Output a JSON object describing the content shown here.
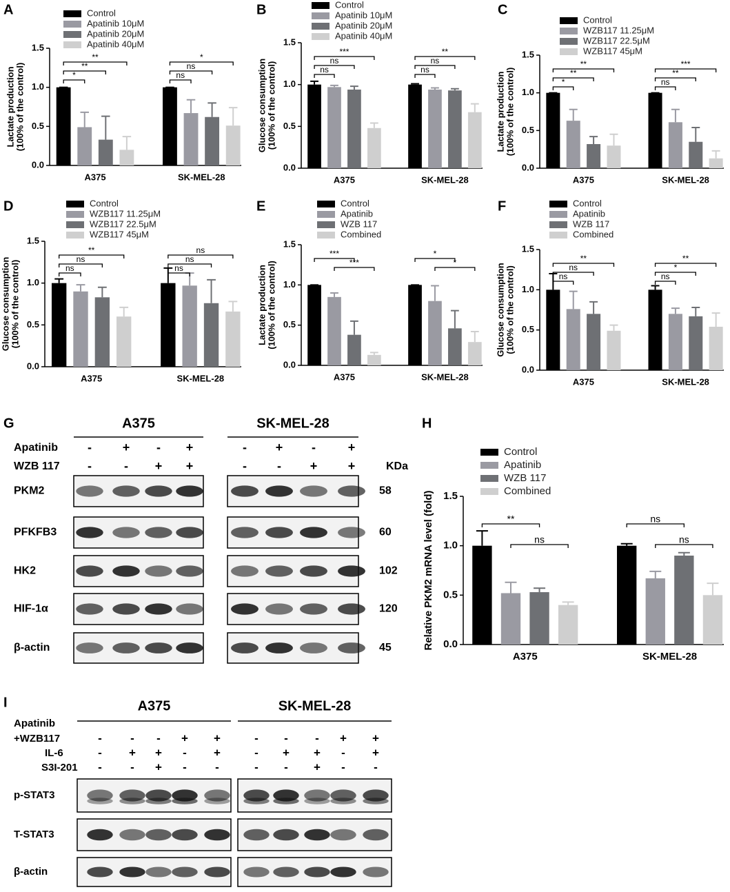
{
  "chart_data": [
    {
      "type": "bar",
      "panel": "A",
      "ylabel": [
        "Lactate production",
        "(100% of the control)"
      ],
      "categories": [
        "A375",
        "SK-MEL-28"
      ],
      "series": [
        {
          "name": "Control",
          "color": "#000000",
          "values": [
            1,
            1
          ],
          "errors": [
            0,
            0
          ]
        },
        {
          "name": "Apatinib 10μM",
          "color": "#9a9aa2",
          "values": [
            0.49,
            0.67
          ],
          "errors": [
            0.19,
            0.17
          ]
        },
        {
          "name": "Apatinib 20μM",
          "color": "#6e7074",
          "values": [
            0.33,
            0.62
          ],
          "errors": [
            0.3,
            0.18
          ]
        },
        {
          "name": "Apatinib 40μM",
          "color": "#cfcfcf",
          "values": [
            0.2,
            0.51
          ],
          "errors": [
            0.17,
            0.23
          ]
        }
      ],
      "ylim": [
        0,
        1.5
      ],
      "yticks": [
        {
          "value": 0,
          "label": "0.0"
        },
        {
          "value": 0.5,
          "label": "0.5"
        },
        {
          "value": 1,
          "label": "1.0"
        },
        {
          "value": 1.5,
          "label": "1.5"
        }
      ],
      "annotations": [
        {
          "text": "*",
          "category": 0,
          "from": 0,
          "to": 1
        },
        {
          "text": "**",
          "category": 0,
          "from": 0,
          "to": 2
        },
        {
          "text": "**",
          "category": 0,
          "from": 0,
          "to": 3
        },
        {
          "text": "ns",
          "category": 1,
          "from": 0,
          "to": 1
        },
        {
          "text": "ns",
          "category": 1,
          "from": 0,
          "to": 2
        },
        {
          "text": "*",
          "category": 1,
          "from": 0,
          "to": 3
        }
      ]
    },
    {
      "type": "bar",
      "panel": "B",
      "ylabel": [
        "Glucose consumption",
        "(100% of the control)"
      ],
      "categories": [
        "A375",
        "SK-MEL-28"
      ],
      "series": [
        {
          "name": "Control",
          "color": "#000000",
          "values": [
            1,
            1
          ],
          "errors": [
            0.04,
            0.01
          ]
        },
        {
          "name": "Apatinib 10μM",
          "color": "#9a9aa2",
          "values": [
            0.97,
            0.94
          ],
          "errors": [
            0.02,
            0.02
          ]
        },
        {
          "name": "Apatinib 20μM",
          "color": "#6e7074",
          "values": [
            0.94,
            0.93
          ],
          "errors": [
            0.04,
            0.02
          ]
        },
        {
          "name": "Apatinib 40μM",
          "color": "#cfcfcf",
          "values": [
            0.48,
            0.67
          ],
          "errors": [
            0.06,
            0.1
          ]
        }
      ],
      "ylim": [
        0,
        1.5
      ],
      "yticks": [
        {
          "value": 0,
          "label": "0.0"
        },
        {
          "value": 0.5,
          "label": "0.5"
        },
        {
          "value": 1,
          "label": "1.0"
        },
        {
          "value": 1.5,
          "label": "1.5"
        }
      ],
      "annotations": [
        {
          "text": "ns",
          "category": 0,
          "from": 0,
          "to": 1
        },
        {
          "text": "ns",
          "category": 0,
          "from": 0,
          "to": 2
        },
        {
          "text": "***",
          "category": 0,
          "from": 0,
          "to": 3
        },
        {
          "text": "ns",
          "category": 1,
          "from": 0,
          "to": 1
        },
        {
          "text": "ns",
          "category": 1,
          "from": 0,
          "to": 2
        },
        {
          "text": "**",
          "category": 1,
          "from": 0,
          "to": 3
        }
      ]
    },
    {
      "type": "bar",
      "panel": "C",
      "ylabel": [
        "Lactate production",
        "(100% of the control)"
      ],
      "categories": [
        "A375",
        "SK-MEL-28"
      ],
      "series": [
        {
          "name": "Control",
          "color": "#000000",
          "values": [
            1,
            1
          ],
          "errors": [
            0,
            0
          ]
        },
        {
          "name": "WZB117 11.25μM",
          "color": "#9a9aa2",
          "values": [
            0.63,
            0.61
          ],
          "errors": [
            0.15,
            0.17
          ]
        },
        {
          "name": "WZB117 22.5μM",
          "color": "#6e7074",
          "values": [
            0.32,
            0.35
          ],
          "errors": [
            0.1,
            0.19
          ]
        },
        {
          "name": "WZB117 45μM",
          "color": "#cfcfcf",
          "values": [
            0.3,
            0.13
          ],
          "errors": [
            0.15,
            0.1
          ]
        }
      ],
      "ylim": [
        0,
        1.5
      ],
      "yticks": [
        {
          "value": 0,
          "label": "0.0"
        },
        {
          "value": 0.5,
          "label": "0.5"
        },
        {
          "value": 1,
          "label": "1.0"
        },
        {
          "value": 1.5,
          "label": "1.5"
        }
      ],
      "annotations": [
        {
          "text": "*",
          "category": 0,
          "from": 0,
          "to": 1
        },
        {
          "text": "**",
          "category": 0,
          "from": 0,
          "to": 2
        },
        {
          "text": "**",
          "category": 0,
          "from": 0,
          "to": 3
        },
        {
          "text": "ns",
          "category": 1,
          "from": 0,
          "to": 1
        },
        {
          "text": "**",
          "category": 1,
          "from": 0,
          "to": 2
        },
        {
          "text": "***",
          "category": 1,
          "from": 0,
          "to": 3
        }
      ]
    },
    {
      "type": "bar",
      "panel": "D",
      "ylabel": [
        "Glucose consumption",
        "(100% of the control)"
      ],
      "categories": [
        "A375",
        "SK-MEL-28"
      ],
      "series": [
        {
          "name": "Control",
          "color": "#000000",
          "values": [
            1,
            1
          ],
          "errors": [
            0.05,
            0.18
          ]
        },
        {
          "name": "WZB117 11.25μM",
          "color": "#9a9aa2",
          "values": [
            0.9,
            0.97
          ],
          "errors": [
            0.08,
            0.15
          ]
        },
        {
          "name": "WZB117 22.5μM",
          "color": "#6e7074",
          "values": [
            0.83,
            0.76
          ],
          "errors": [
            0.12,
            0.28
          ]
        },
        {
          "name": "WZB117 45μM",
          "color": "#cfcfcf",
          "values": [
            0.6,
            0.66
          ],
          "errors": [
            0.11,
            0.12
          ]
        }
      ],
      "ylim": [
        0,
        1.5
      ],
      "yticks": [
        {
          "value": 0,
          "label": "0.0"
        },
        {
          "value": 0.5,
          "label": "0.5"
        },
        {
          "value": 1,
          "label": "1.0"
        },
        {
          "value": 1.5,
          "label": "1.5"
        }
      ],
      "annotations": [
        {
          "text": "ns",
          "category": 0,
          "from": 0,
          "to": 1
        },
        {
          "text": "ns",
          "category": 0,
          "from": 0,
          "to": 2
        },
        {
          "text": "**",
          "category": 0,
          "from": 0,
          "to": 3
        },
        {
          "text": "ns",
          "category": 1,
          "from": 0,
          "to": 1
        },
        {
          "text": "ns",
          "category": 1,
          "from": 0,
          "to": 2
        },
        {
          "text": "ns",
          "category": 1,
          "from": 0,
          "to": 3
        }
      ]
    },
    {
      "type": "bar",
      "panel": "E",
      "ylabel": [
        "Lactate production",
        "(100% of the control)"
      ],
      "categories": [
        "A375",
        "SK-MEL-28"
      ],
      "series": [
        {
          "name": "Control",
          "color": "#000000",
          "values": [
            1,
            1
          ],
          "errors": [
            0,
            0
          ]
        },
        {
          "name": "Apatinib",
          "color": "#9a9aa2",
          "values": [
            0.85,
            0.8
          ],
          "errors": [
            0.05,
            0.19
          ]
        },
        {
          "name": "WZB 117",
          "color": "#6e7074",
          "values": [
            0.38,
            0.46
          ],
          "errors": [
            0.17,
            0.22
          ]
        },
        {
          "name": "Combined",
          "color": "#cfcfcf",
          "values": [
            0.13,
            0.29
          ],
          "errors": [
            0.03,
            0.13
          ]
        }
      ],
      "ylim": [
        0,
        1.5
      ],
      "yticks": [
        {
          "value": 0,
          "label": "0.0"
        },
        {
          "value": 0.5,
          "label": "0.5"
        },
        {
          "value": 1,
          "label": "1.0"
        },
        {
          "value": 1.5,
          "label": "1.5"
        }
      ],
      "annotations": [
        {
          "text": "***",
          "category": 0,
          "from": 1,
          "to": 3
        },
        {
          "text": "***",
          "category": 0,
          "from": 0,
          "to": 2
        },
        {
          "text": "*",
          "category": 1,
          "from": 1,
          "to": 3
        },
        {
          "text": "*",
          "category": 1,
          "from": 0,
          "to": 2
        }
      ]
    },
    {
      "type": "bar",
      "panel": "F",
      "ylabel": [
        "Glucose consumption",
        "(100% of the control)"
      ],
      "categories": [
        "A375",
        "SK-MEL-28"
      ],
      "series": [
        {
          "name": "Control",
          "color": "#000000",
          "values": [
            1,
            1
          ],
          "errors": [
            0.2,
            0.05
          ]
        },
        {
          "name": "Apatinib",
          "color": "#9a9aa2",
          "values": [
            0.76,
            0.7
          ],
          "errors": [
            0.22,
            0.07
          ]
        },
        {
          "name": "WZB 117",
          "color": "#6e7074",
          "values": [
            0.7,
            0.67
          ],
          "errors": [
            0.15,
            0.11
          ]
        },
        {
          "name": "Combined",
          "color": "#cfcfcf",
          "values": [
            0.49,
            0.54
          ],
          "errors": [
            0.07,
            0.17
          ]
        }
      ],
      "ylim": [
        0,
        1.5
      ],
      "yticks": [
        {
          "value": 0,
          "label": "0.0"
        },
        {
          "value": 0.5,
          "label": "0.5"
        },
        {
          "value": 1,
          "label": "1.0"
        },
        {
          "value": 1.5,
          "label": "1.5"
        }
      ],
      "annotations": [
        {
          "text": "ns",
          "category": 0,
          "from": 0,
          "to": 1
        },
        {
          "text": "ns",
          "category": 0,
          "from": 0,
          "to": 2
        },
        {
          "text": "**",
          "category": 0,
          "from": 0,
          "to": 3
        },
        {
          "text": "ns",
          "category": 1,
          "from": 0,
          "to": 1
        },
        {
          "text": "*",
          "category": 1,
          "from": 0,
          "to": 2
        },
        {
          "text": "**",
          "category": 1,
          "from": 0,
          "to": 3
        }
      ]
    },
    {
      "type": "bar",
      "panel": "H",
      "ylabel": [
        "Relative PKM2 mRNA  level (fold)"
      ],
      "categories": [
        "A375",
        "SK-MEL-28"
      ],
      "series": [
        {
          "name": "Control",
          "color": "#000000",
          "values": [
            1,
            1
          ],
          "errors": [
            0.15,
            0.02
          ]
        },
        {
          "name": "Apatinib",
          "color": "#9a9aa2",
          "values": [
            0.52,
            0.67
          ],
          "errors": [
            0.11,
            0.07
          ]
        },
        {
          "name": "WZB 117",
          "color": "#6e7074",
          "values": [
            0.53,
            0.9
          ],
          "errors": [
            0.04,
            0.03
          ]
        },
        {
          "name": "Combined",
          "color": "#cfcfcf",
          "values": [
            0.4,
            0.5
          ],
          "errors": [
            0.03,
            0.12
          ]
        }
      ],
      "ylim": [
        0,
        1.5
      ],
      "yticks": [
        {
          "value": 0,
          "label": "0.0"
        },
        {
          "value": 0.5,
          "label": "0.5"
        },
        {
          "value": 1,
          "label": "1.0"
        },
        {
          "value": 1.5,
          "label": "1.5"
        }
      ],
      "annotations": [
        {
          "text": "ns",
          "category": 0,
          "from": 1,
          "to": 3
        },
        {
          "text": "**",
          "category": 0,
          "from": 0,
          "to": 2
        },
        {
          "text": "ns",
          "category": 1,
          "from": 1,
          "to": 3
        },
        {
          "text": "ns",
          "category": 1,
          "from": 0,
          "to": 2
        }
      ]
    }
  ],
  "blots": {
    "G": {
      "panel": "G",
      "groups": [
        "A375",
        "SK-MEL-28"
      ],
      "unit": "KDa",
      "conditions": [
        {
          "label": [
            "Apatinib"
          ],
          "signs": [
            [
              "-",
              "+",
              "-",
              "+"
            ],
            [
              "-",
              "+",
              "-",
              "+"
            ]
          ]
        },
        {
          "label": [
            "WZB 117"
          ],
          "signs": [
            [
              "-",
              "-",
              "+",
              "+"
            ],
            [
              "-",
              "-",
              "+",
              "+"
            ]
          ]
        }
      ],
      "proteins": [
        {
          "name": "PKM2",
          "kda": "58"
        },
        {
          "name": "PFKFB3",
          "kda": "60"
        },
        {
          "name": "HK2",
          "kda": "102"
        },
        {
          "name": "HIF-1α",
          "kda": "120"
        },
        {
          "name": "β-actin",
          "kda": "45"
        }
      ]
    },
    "I": {
      "panel": "I",
      "groups": [
        "A375",
        "SK-MEL-28"
      ],
      "conditions": [
        {
          "label": [
            "Apatinib",
            "+WZB117"
          ],
          "signs": [
            [
              "-",
              "-",
              "-",
              "+",
              "+"
            ],
            [
              "-",
              "-",
              "-",
              "+",
              "+"
            ]
          ]
        },
        {
          "label": [
            "IL-6"
          ],
          "signs": [
            [
              "-",
              "+",
              "+",
              "-",
              "+"
            ],
            [
              "-",
              "+",
              "+",
              "-",
              "+"
            ]
          ]
        },
        {
          "label": [
            "S3I-201"
          ],
          "signs": [
            [
              "-",
              "-",
              "+",
              "-",
              "-"
            ],
            [
              "-",
              "-",
              "+",
              "-",
              "-"
            ]
          ]
        }
      ],
      "proteins": [
        {
          "name": "p-STAT3"
        },
        {
          "name": "T-STAT3"
        },
        {
          "name": "β-actin"
        }
      ]
    }
  }
}
